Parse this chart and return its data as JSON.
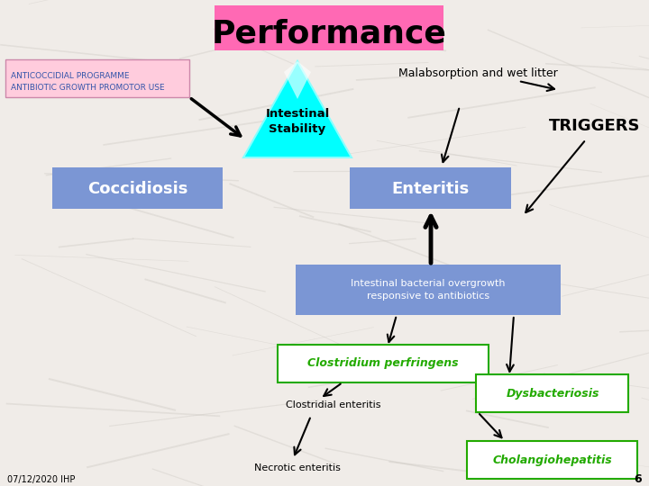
{
  "title": "Performance",
  "title_bg": "#FF69B4",
  "bg_color": "#F0ECE8",
  "anticoccidial_text": "ANTICOCCIDIAL PROGRAMME\nANTIBIOTIC GROWTH PROMOTOR USE",
  "intestinal_stability_text": "Intestinal\nStability",
  "coccidiosis_text": "Coccidiosis",
  "coccidiosis_bg": "#7B96D4",
  "enteritis_text": "Enteritis",
  "enteritis_bg": "#7B96D4",
  "malabsorption_text": "Malabsorption and wet litter",
  "triggers_text": "TRIGGERS",
  "intestinal_bacterial_text": "Intestinal bacterial overgrowth\nresponsive to antibiotics",
  "intestinal_bacterial_bg": "#7B96D4",
  "clostridium_text": "Clostridium perfringens",
  "clostridial_enteritis_text": "Clostridial enteritis",
  "necrotic_enteritis_text": "Necrotic enteritis",
  "dysbacteriosis_text": "Dysbacteriosis",
  "cholangiohepatitis_text": "Cholangiohepatitis",
  "green_text_color": "#22AA00",
  "footer_text": "07/12/2020 IHP",
  "page_num": "6"
}
